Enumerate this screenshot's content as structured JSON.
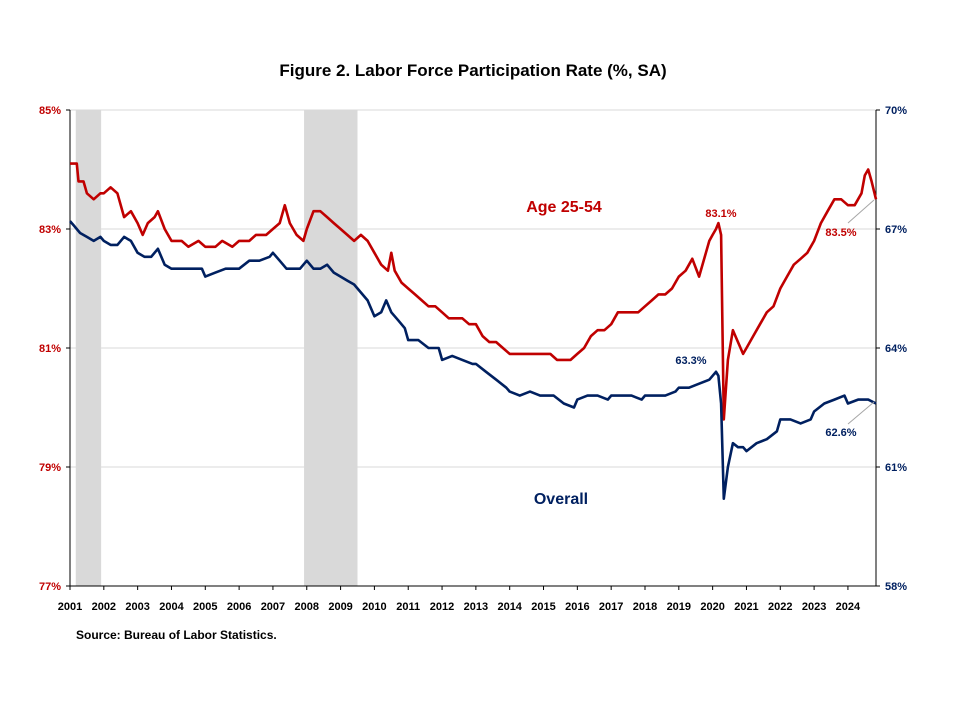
{
  "chart_data": {
    "type": "line",
    "title": "Figure 2. Labor Force Participation  Rate (%, SA)",
    "source": "Source: Bureau of Labor Statistics.",
    "x_ticks": [
      "2001",
      "2002",
      "2003",
      "2004",
      "2005",
      "2006",
      "2007",
      "2008",
      "2009",
      "2010",
      "2011",
      "2012",
      "2013",
      "2014",
      "2015",
      "2016",
      "2017",
      "2018",
      "2019",
      "2020",
      "2021",
      "2022",
      "2023",
      "2024"
    ],
    "xlim": [
      2001.0,
      2024.83
    ],
    "y_left": {
      "lim": [
        77,
        85
      ],
      "ticks": [
        77,
        79,
        81,
        83,
        85
      ],
      "tick_labels": [
        "77%",
        "79%",
        "81%",
        "83%",
        "85%"
      ]
    },
    "y_right": {
      "lim": [
        58,
        70
      ],
      "ticks": [
        58,
        61,
        64,
        67,
        70
      ],
      "tick_labels": [
        "58%",
        "61%",
        "64%",
        "67%",
        "70%"
      ]
    },
    "grid": true,
    "recessions": [
      [
        2001.17,
        2001.92
      ],
      [
        2007.92,
        2009.5
      ]
    ],
    "series": [
      {
        "name": "Age 25-54",
        "axis": "left",
        "color": "#c00000",
        "points": [
          [
            2001.0,
            84.1
          ],
          [
            2001.2,
            84.1
          ],
          [
            2001.25,
            83.8
          ],
          [
            2001.4,
            83.8
          ],
          [
            2001.5,
            83.6
          ],
          [
            2001.7,
            83.5
          ],
          [
            2001.9,
            83.6
          ],
          [
            2002.0,
            83.6
          ],
          [
            2002.2,
            83.7
          ],
          [
            2002.4,
            83.6
          ],
          [
            2002.6,
            83.2
          ],
          [
            2002.8,
            83.3
          ],
          [
            2003.0,
            83.1
          ],
          [
            2003.15,
            82.9
          ],
          [
            2003.3,
            83.1
          ],
          [
            2003.5,
            83.2
          ],
          [
            2003.6,
            83.3
          ],
          [
            2003.8,
            83.0
          ],
          [
            2004.0,
            82.8
          ],
          [
            2004.3,
            82.8
          ],
          [
            2004.5,
            82.7
          ],
          [
            2004.8,
            82.8
          ],
          [
            2005.0,
            82.7
          ],
          [
            2005.3,
            82.7
          ],
          [
            2005.5,
            82.8
          ],
          [
            2005.8,
            82.7
          ],
          [
            2006.0,
            82.8
          ],
          [
            2006.3,
            82.8
          ],
          [
            2006.5,
            82.9
          ],
          [
            2006.8,
            82.9
          ],
          [
            2007.0,
            83.0
          ],
          [
            2007.2,
            83.1
          ],
          [
            2007.35,
            83.4
          ],
          [
            2007.5,
            83.1
          ],
          [
            2007.7,
            82.9
          ],
          [
            2007.9,
            82.8
          ],
          [
            2008.0,
            83.0
          ],
          [
            2008.2,
            83.3
          ],
          [
            2008.4,
            83.3
          ],
          [
            2008.6,
            83.2
          ],
          [
            2008.8,
            83.1
          ],
          [
            2009.0,
            83.0
          ],
          [
            2009.2,
            82.9
          ],
          [
            2009.4,
            82.8
          ],
          [
            2009.6,
            82.9
          ],
          [
            2009.8,
            82.8
          ],
          [
            2010.0,
            82.6
          ],
          [
            2010.2,
            82.4
          ],
          [
            2010.4,
            82.3
          ],
          [
            2010.5,
            82.6
          ],
          [
            2010.6,
            82.3
          ],
          [
            2010.8,
            82.1
          ],
          [
            2011.0,
            82.0
          ],
          [
            2011.2,
            81.9
          ],
          [
            2011.4,
            81.8
          ],
          [
            2011.6,
            81.7
          ],
          [
            2011.8,
            81.7
          ],
          [
            2012.0,
            81.6
          ],
          [
            2012.2,
            81.5
          ],
          [
            2012.4,
            81.5
          ],
          [
            2012.6,
            81.5
          ],
          [
            2012.8,
            81.4
          ],
          [
            2013.0,
            81.4
          ],
          [
            2013.2,
            81.2
          ],
          [
            2013.4,
            81.1
          ],
          [
            2013.6,
            81.1
          ],
          [
            2013.8,
            81.0
          ],
          [
            2014.0,
            80.9
          ],
          [
            2014.2,
            80.9
          ],
          [
            2014.4,
            80.9
          ],
          [
            2014.6,
            80.9
          ],
          [
            2014.8,
            80.9
          ],
          [
            2015.0,
            80.9
          ],
          [
            2015.2,
            80.9
          ],
          [
            2015.4,
            80.8
          ],
          [
            2015.6,
            80.8
          ],
          [
            2015.8,
            80.8
          ],
          [
            2016.0,
            80.9
          ],
          [
            2016.2,
            81.0
          ],
          [
            2016.4,
            81.2
          ],
          [
            2016.6,
            81.3
          ],
          [
            2016.8,
            81.3
          ],
          [
            2017.0,
            81.4
          ],
          [
            2017.2,
            81.6
          ],
          [
            2017.4,
            81.6
          ],
          [
            2017.6,
            81.6
          ],
          [
            2017.8,
            81.6
          ],
          [
            2018.0,
            81.7
          ],
          [
            2018.2,
            81.8
          ],
          [
            2018.4,
            81.9
          ],
          [
            2018.6,
            81.9
          ],
          [
            2018.8,
            82.0
          ],
          [
            2019.0,
            82.2
          ],
          [
            2019.2,
            82.3
          ],
          [
            2019.4,
            82.5
          ],
          [
            2019.6,
            82.2
          ],
          [
            2019.8,
            82.6
          ],
          [
            2019.9,
            82.8
          ],
          [
            2020.0,
            82.9
          ],
          [
            2020.1,
            83.0
          ],
          [
            2020.17,
            83.1
          ],
          [
            2020.25,
            82.9
          ],
          [
            2020.33,
            79.8
          ],
          [
            2020.45,
            80.8
          ],
          [
            2020.6,
            81.3
          ],
          [
            2020.75,
            81.1
          ],
          [
            2020.9,
            80.9
          ],
          [
            2021.0,
            81.0
          ],
          [
            2021.2,
            81.2
          ],
          [
            2021.4,
            81.4
          ],
          [
            2021.6,
            81.6
          ],
          [
            2021.8,
            81.7
          ],
          [
            2022.0,
            82.0
          ],
          [
            2022.2,
            82.2
          ],
          [
            2022.4,
            82.4
          ],
          [
            2022.6,
            82.5
          ],
          [
            2022.8,
            82.6
          ],
          [
            2023.0,
            82.8
          ],
          [
            2023.2,
            83.1
          ],
          [
            2023.4,
            83.3
          ],
          [
            2023.6,
            83.5
          ],
          [
            2023.8,
            83.5
          ],
          [
            2024.0,
            83.4
          ],
          [
            2024.2,
            83.4
          ],
          [
            2024.4,
            83.6
          ],
          [
            2024.5,
            83.9
          ],
          [
            2024.6,
            84.0
          ],
          [
            2024.7,
            83.8
          ],
          [
            2024.83,
            83.5
          ]
        ]
      },
      {
        "name": "Overall",
        "axis": "right",
        "color": "#002060",
        "points": [
          [
            2001.0,
            67.2
          ],
          [
            2001.1,
            67.1
          ],
          [
            2001.3,
            66.9
          ],
          [
            2001.5,
            66.8
          ],
          [
            2001.7,
            66.7
          ],
          [
            2001.9,
            66.8
          ],
          [
            2002.0,
            66.7
          ],
          [
            2002.2,
            66.6
          ],
          [
            2002.4,
            66.6
          ],
          [
            2002.6,
            66.8
          ],
          [
            2002.8,
            66.7
          ],
          [
            2003.0,
            66.4
          ],
          [
            2003.2,
            66.3
          ],
          [
            2003.4,
            66.3
          ],
          [
            2003.6,
            66.5
          ],
          [
            2003.8,
            66.1
          ],
          [
            2004.0,
            66.0
          ],
          [
            2004.3,
            66.0
          ],
          [
            2004.6,
            66.0
          ],
          [
            2004.9,
            66.0
          ],
          [
            2005.0,
            65.8
          ],
          [
            2005.3,
            65.9
          ],
          [
            2005.6,
            66.0
          ],
          [
            2005.9,
            66.0
          ],
          [
            2006.0,
            66.0
          ],
          [
            2006.3,
            66.2
          ],
          [
            2006.6,
            66.2
          ],
          [
            2006.9,
            66.3
          ],
          [
            2007.0,
            66.4
          ],
          [
            2007.2,
            66.2
          ],
          [
            2007.4,
            66.0
          ],
          [
            2007.6,
            66.0
          ],
          [
            2007.8,
            66.0
          ],
          [
            2008.0,
            66.2
          ],
          [
            2008.2,
            66.0
          ],
          [
            2008.4,
            66.0
          ],
          [
            2008.6,
            66.1
          ],
          [
            2008.8,
            65.9
          ],
          [
            2009.0,
            65.8
          ],
          [
            2009.2,
            65.7
          ],
          [
            2009.4,
            65.6
          ],
          [
            2009.6,
            65.4
          ],
          [
            2009.8,
            65.2
          ],
          [
            2010.0,
            64.8
          ],
          [
            2010.2,
            64.9
          ],
          [
            2010.35,
            65.2
          ],
          [
            2010.5,
            64.9
          ],
          [
            2010.7,
            64.7
          ],
          [
            2010.9,
            64.5
          ],
          [
            2011.0,
            64.2
          ],
          [
            2011.3,
            64.2
          ],
          [
            2011.6,
            64.0
          ],
          [
            2011.9,
            64.0
          ],
          [
            2012.0,
            63.7
          ],
          [
            2012.3,
            63.8
          ],
          [
            2012.6,
            63.7
          ],
          [
            2012.9,
            63.6
          ],
          [
            2013.0,
            63.6
          ],
          [
            2013.3,
            63.4
          ],
          [
            2013.6,
            63.2
          ],
          [
            2013.9,
            63.0
          ],
          [
            2014.0,
            62.9
          ],
          [
            2014.3,
            62.8
          ],
          [
            2014.6,
            62.9
          ],
          [
            2014.9,
            62.8
          ],
          [
            2015.0,
            62.8
          ],
          [
            2015.3,
            62.8
          ],
          [
            2015.6,
            62.6
          ],
          [
            2015.9,
            62.5
          ],
          [
            2016.0,
            62.7
          ],
          [
            2016.3,
            62.8
          ],
          [
            2016.6,
            62.8
          ],
          [
            2016.9,
            62.7
          ],
          [
            2017.0,
            62.8
          ],
          [
            2017.3,
            62.8
          ],
          [
            2017.6,
            62.8
          ],
          [
            2017.9,
            62.7
          ],
          [
            2018.0,
            62.8
          ],
          [
            2018.3,
            62.8
          ],
          [
            2018.6,
            62.8
          ],
          [
            2018.9,
            62.9
          ],
          [
            2019.0,
            63.0
          ],
          [
            2019.3,
            63.0
          ],
          [
            2019.6,
            63.1
          ],
          [
            2019.9,
            63.2
          ],
          [
            2020.0,
            63.3
          ],
          [
            2020.1,
            63.4
          ],
          [
            2020.17,
            63.3
          ],
          [
            2020.25,
            62.6
          ],
          [
            2020.33,
            60.2
          ],
          [
            2020.45,
            61.0
          ],
          [
            2020.6,
            61.6
          ],
          [
            2020.75,
            61.5
          ],
          [
            2020.9,
            61.5
          ],
          [
            2021.0,
            61.4
          ],
          [
            2021.3,
            61.6
          ],
          [
            2021.6,
            61.7
          ],
          [
            2021.9,
            61.9
          ],
          [
            2022.0,
            62.2
          ],
          [
            2022.3,
            62.2
          ],
          [
            2022.6,
            62.1
          ],
          [
            2022.9,
            62.2
          ],
          [
            2023.0,
            62.4
          ],
          [
            2023.3,
            62.6
          ],
          [
            2023.6,
            62.7
          ],
          [
            2023.9,
            62.8
          ],
          [
            2024.0,
            62.6
          ],
          [
            2024.3,
            62.7
          ],
          [
            2024.6,
            62.7
          ],
          [
            2024.83,
            62.6
          ]
        ]
      }
    ],
    "annotations": [
      {
        "text": "Age 25-54",
        "kind": "series-label",
        "series": "Age 25-54"
      },
      {
        "text": "Overall",
        "kind": "series-label",
        "series": "Overall"
      },
      {
        "text": "83.1%",
        "series": "Age 25-54",
        "x": 2020.17,
        "y": 83.1
      },
      {
        "text": "83.5%",
        "series": "Age 25-54",
        "x": 2024.83,
        "y": 83.5
      },
      {
        "text": "63.3%",
        "series": "Overall",
        "x": 2020.17,
        "y": 63.3
      },
      {
        "text": "62.6%",
        "series": "Overall",
        "x": 2024.83,
        "y": 62.6
      }
    ]
  }
}
